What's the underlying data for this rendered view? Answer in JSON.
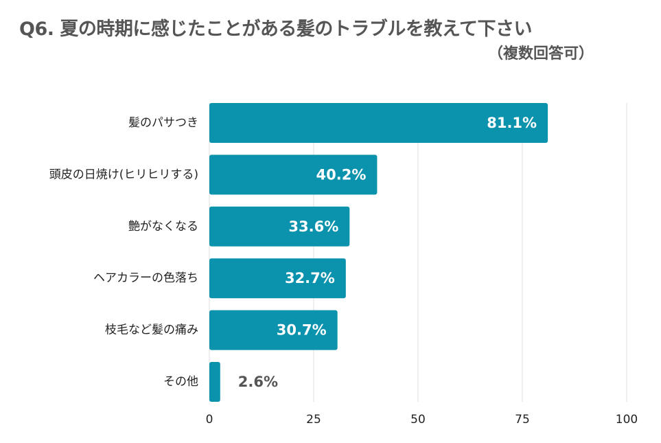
{
  "chart_data": {
    "type": "bar",
    "orientation": "horizontal",
    "title": "Q6. 夏の時期に感じたことがある髪のトラブルを教えて下さい",
    "subtitle": "（複数回答可）",
    "categories": [
      "髪のパサつき",
      "頭皮の日焼け(ヒリヒリする)",
      "艶がなくなる",
      "ヘアカラーの色落ち",
      "枝毛など髪の痛み",
      "その他"
    ],
    "values": [
      81.1,
      40.2,
      33.6,
      32.7,
      30.7,
      2.6
    ],
    "value_labels": [
      "81.1%",
      "40.2%",
      "33.6%",
      "32.7%",
      "30.7%",
      "2.6%"
    ],
    "xlim": [
      0,
      100
    ],
    "xticks": [
      0,
      25,
      50,
      75,
      100
    ],
    "xtick_labels": [
      "0",
      "25",
      "50",
      "75",
      "100"
    ],
    "xlabel": "",
    "ylabel": "",
    "grid": true,
    "legend": "none",
    "bar_color": "#0b93ad",
    "grid_color": "#dddddd"
  }
}
